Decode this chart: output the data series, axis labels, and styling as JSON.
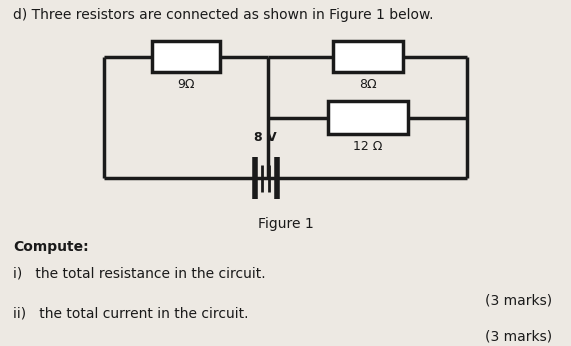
{
  "bg_color": "#ede9e3",
  "line_color": "#1a1a1a",
  "line_width": 2.5,
  "title_text": "d) Three resistors are connected as shown in Figure 1 below.",
  "title_fontsize": 10,
  "figure1_label": "Figure 1",
  "compute_text": "Compute:",
  "q1_text": "i)   the total resistance in the circuit.",
  "marks1_text": "(3 marks)",
  "q2_text": "ii)   the total current in the circuit.",
  "marks2_text": "(3 marks)",
  "res9_label": "9Ω",
  "res8_label": "8Ω",
  "res12_label": "12 Ω",
  "battery_label": "8 V"
}
